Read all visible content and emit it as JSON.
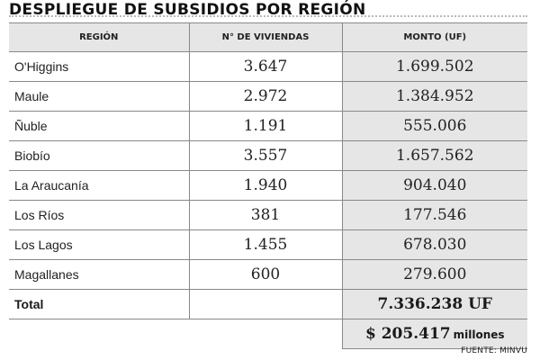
{
  "title": "DESPLIEGUE DE SUBSIDIOS POR REGIÓN",
  "headers": {
    "region": "REGIÓN",
    "viviendas": "N° DE VIVIENDAS",
    "monto": "MONTO (UF)"
  },
  "rows": [
    {
      "region": "O'Higgins",
      "viviendas": "3.647",
      "monto": "1.699.502"
    },
    {
      "region": "Maule",
      "viviendas": "2.972",
      "monto": "1.384.952"
    },
    {
      "region": "Ñuble",
      "viviendas": "1.191",
      "monto": "555.006"
    },
    {
      "region": "Biobío",
      "viviendas": "3.557",
      "monto": "1.657.562"
    },
    {
      "region": "La Araucanía",
      "viviendas": "1.940",
      "monto": "904.040"
    },
    {
      "region": "Los Ríos",
      "viviendas": "381",
      "monto": "177.546"
    },
    {
      "region": "Los Lagos",
      "viviendas": "1.455",
      "monto": "678.030"
    },
    {
      "region": "Magallanes",
      "viviendas": "600",
      "monto": "279.600"
    }
  ],
  "total": {
    "label": "Total",
    "monto": "7.336.238 UF"
  },
  "pesos": {
    "value": "$ 205.417",
    "unit": "millones"
  },
  "source": "FUENTE: MINVU",
  "colors": {
    "header_fill": "#e6e6e6",
    "rule": "#888888"
  }
}
